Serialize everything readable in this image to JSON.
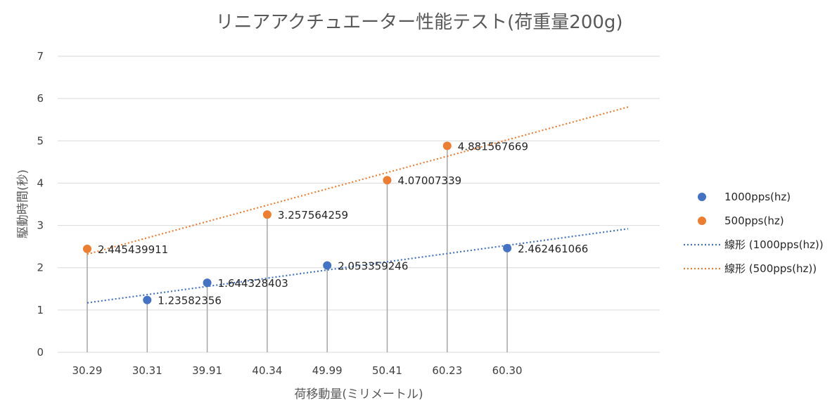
{
  "chart_data": {
    "type": "scatter",
    "title": "リニアアクチュエーター性能テスト(荷重量200g)",
    "xlabel": "荷移動量(ミリメートル)",
    "ylabel": "駆動時間(秒)",
    "categories": [
      "30.29",
      "30.31",
      "39.91",
      "40.34",
      "49.99",
      "50.41",
      "60.23",
      "60.30"
    ],
    "ylim": [
      0,
      7
    ],
    "yticks": [
      "0",
      "1",
      "2",
      "3",
      "4",
      "5",
      "6",
      "7"
    ],
    "grid": true,
    "legend_position": "right",
    "series": [
      {
        "name": "1000pps(hz)",
        "color": "#4472C4",
        "points": [
          {
            "category": "30.31",
            "value": 1.23582356,
            "label": "1.23582356"
          },
          {
            "category": "39.91",
            "value": 1.644328403,
            "label": "1.644328403"
          },
          {
            "category": "49.99",
            "value": 2.053359246,
            "label": "2.053359246"
          },
          {
            "category": "60.30",
            "value": 2.462461066,
            "label": "2.462461066"
          }
        ]
      },
      {
        "name": "500pps(hz)",
        "color": "#ED7D31",
        "points": [
          {
            "category": "30.29",
            "value": 2.445439911,
            "label": "2.445439911"
          },
          {
            "category": "40.34",
            "value": 3.257564259,
            "label": "3.257564259"
          },
          {
            "category": "50.41",
            "value": 4.07007339,
            "label": "4.07007339"
          },
          {
            "category": "60.23",
            "value": 4.881567669,
            "label": "4.881567669"
          }
        ]
      }
    ],
    "trendlines": [
      {
        "name": "線形 (1000pps(hz))",
        "series": "1000pps(hz)",
        "type": "linear",
        "color": "#4472C4",
        "start_value": 1.17,
        "end_value": 2.92
      },
      {
        "name": "線形 (500pps(hz))",
        "series": "500pps(hz)",
        "type": "linear",
        "color": "#ED7D31",
        "start_value": 2.32,
        "end_value": 5.8
      }
    ],
    "drop_lines": true
  }
}
